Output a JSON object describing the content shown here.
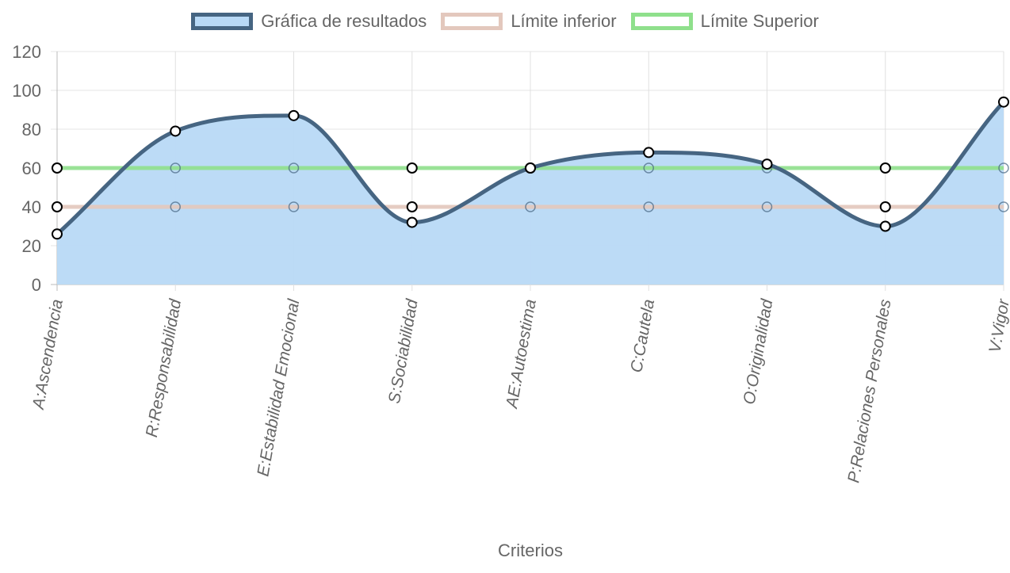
{
  "chart_data": {
    "type": "line",
    "categories": [
      "A:Ascendencia",
      "R:Responsabilidad",
      "E:Estabilidad Emocional",
      "S:Sociabilidad",
      "AE:Autoestima",
      "C:Cautela",
      "O:Originalidad",
      "P:Relaciones Personales",
      "V:Vigor"
    ],
    "series": [
      {
        "name": "Gráfica de resultados",
        "values": [
          26,
          79,
          87,
          32,
          60,
          68,
          62,
          30,
          94
        ],
        "fill": true,
        "line_color": "#466582",
        "fill_color": "#b8d9f6"
      },
      {
        "name": "Límite inferior",
        "values": [
          40,
          40,
          40,
          40,
          40,
          40,
          40,
          40,
          40
        ],
        "fill": false,
        "line_color": "#e3c8bd",
        "fill_color": "#ffffff"
      },
      {
        "name": "Límite Superior",
        "values": [
          60,
          60,
          60,
          60,
          60,
          60,
          60,
          60,
          60
        ],
        "fill": false,
        "line_color": "#8fe08c",
        "fill_color": "#ffffff"
      }
    ],
    "xlabel": "Criterios",
    "ylabel": "",
    "ylim": [
      0,
      120
    ],
    "yticks": [
      "0",
      "20",
      "40",
      "60",
      "80",
      "100",
      "120"
    ],
    "grid": true,
    "legend_position": "top-center"
  }
}
